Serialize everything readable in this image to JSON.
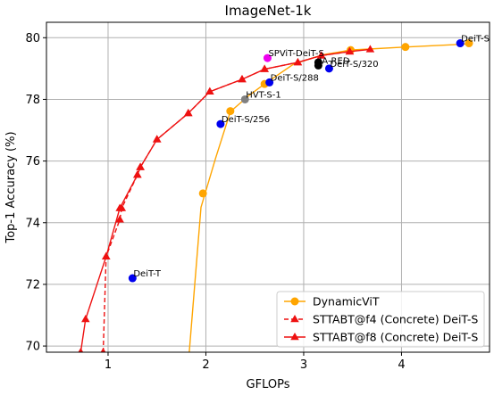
{
  "chart_data": {
    "type": "line",
    "title": "ImageNet-1k",
    "xlabel": "GFLOPs",
    "ylabel": "Top-1 Accuracy (%)",
    "xlim": [
      0.37,
      4.9
    ],
    "ylim": [
      69.8,
      80.5
    ],
    "xticks": [
      1,
      2,
      3,
      4
    ],
    "yticks": [
      70,
      72,
      74,
      76,
      78,
      80
    ],
    "grid": true,
    "legend_position": "lower right",
    "series": [
      {
        "name": "DynamicViT",
        "color": "#ffa500",
        "line_style": "solid",
        "marker": "circle",
        "curve_x": [
          1.83,
          1.95,
          2.1,
          2.25,
          2.45,
          2.6,
          2.9,
          3.2,
          3.48,
          4.05,
          4.7
        ],
        "curve_y": [
          69.8,
          74.5,
          76.1,
          77.6,
          78.15,
          78.5,
          79.15,
          79.45,
          79.6,
          79.7,
          79.8
        ],
        "points_x": [
          1.97,
          2.25,
          2.6,
          3.48,
          4.04,
          4.69
        ],
        "points_y": [
          74.95,
          77.62,
          78.5,
          79.6,
          79.7,
          79.82
        ]
      },
      {
        "name": "STTABT@f4 (Concrete) DeiT-S",
        "color": "#ee1111",
        "line_style": "dashed",
        "marker": "triangle",
        "x": [
          0.95,
          0.98,
          1.12,
          1.14,
          1.3,
          1.33,
          1.5,
          1.82,
          2.04,
          2.37,
          2.6,
          2.94,
          3.18,
          3.47
        ],
        "y": [
          69.8,
          72.9,
          74.1,
          74.47,
          75.55,
          75.8,
          76.7,
          77.55,
          78.25,
          78.65,
          78.98,
          79.2,
          79.42,
          79.55
        ]
      },
      {
        "name": "STTABT@f8 (Concrete) DeiT-S",
        "color": "#ee1111",
        "line_style": "solid",
        "marker": "triangle",
        "x": [
          0.72,
          0.77,
          0.98,
          1.12,
          1.3,
          1.33,
          1.5,
          1.82,
          2.04,
          2.37,
          2.6,
          2.94,
          3.18,
          3.47,
          3.68
        ],
        "y": [
          69.8,
          70.87,
          72.9,
          74.47,
          75.55,
          75.8,
          76.7,
          77.55,
          78.25,
          78.65,
          78.98,
          79.2,
          79.42,
          79.55,
          79.62
        ]
      }
    ],
    "models": [
      {
        "label": "DeiT-T",
        "x": 1.25,
        "y": 72.2,
        "color": "#0000ee"
      },
      {
        "label": "DeiT-S/256",
        "x": 2.15,
        "y": 77.2,
        "color": "#0000ee"
      },
      {
        "label": "HVT-S-1",
        "x": 2.4,
        "y": 78.0,
        "color": "#808080"
      },
      {
        "label": "DeiT-S/288",
        "x": 2.65,
        "y": 78.55,
        "color": "#0000ee"
      },
      {
        "label": "SPViT-DeiT-S",
        "x": 2.63,
        "y": 79.34,
        "color": "#ee00ee"
      },
      {
        "label": "IA-RED",
        "x": 3.15,
        "y": 79.1,
        "color": "#000000"
      },
      {
        "label": "",
        "x": 3.15,
        "y": 79.2,
        "color": "#000000"
      },
      {
        "label": "DeiT-S/320",
        "x": 3.26,
        "y": 79.0,
        "color": "#0000ee"
      },
      {
        "label": "DeiT-S",
        "x": 4.6,
        "y": 79.82,
        "color": "#0000ee"
      }
    ]
  }
}
